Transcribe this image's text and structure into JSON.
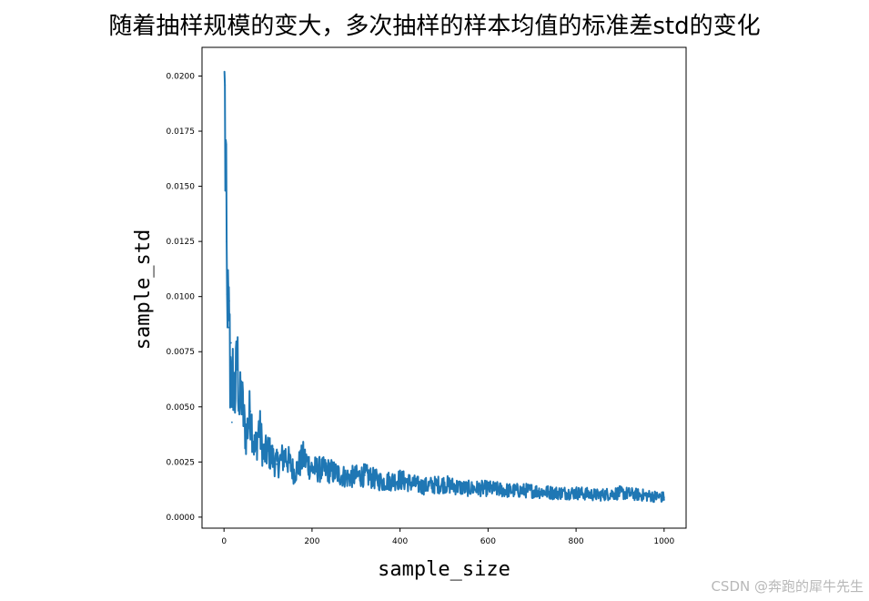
{
  "chart_data": {
    "type": "line",
    "title": "随着抽样规模的变大，多次抽样的样本均值的标准差std的变化",
    "xlabel": "sample_size",
    "ylabel": "sample_std",
    "xlim": [
      -50,
      1050
    ],
    "ylim": [
      -0.0005,
      0.0213
    ],
    "x_ticks": [
      0,
      200,
      400,
      600,
      800,
      1000
    ],
    "x_tick_labels": [
      "0",
      "200",
      "400",
      "600",
      "800",
      "1000"
    ],
    "y_ticks": [
      0.0,
      0.0025,
      0.005,
      0.0075,
      0.01,
      0.0125,
      0.015,
      0.0175,
      0.02
    ],
    "y_tick_labels": [
      "0.0000",
      "0.0025",
      "0.0050",
      "0.0075",
      "0.0100",
      "0.0125",
      "0.0150",
      "0.0175",
      "0.0200"
    ],
    "grid": false,
    "series": [
      {
        "color": "#1f77b4",
        "x": [
          1,
          2,
          3,
          4,
          5,
          6,
          7,
          8,
          9,
          10,
          12,
          14,
          16,
          18,
          20,
          25,
          30,
          35,
          40,
          45,
          50,
          60,
          70,
          80,
          90,
          100,
          120,
          140,
          160,
          180,
          200,
          240,
          280,
          320,
          360,
          400,
          450,
          500,
          550,
          600,
          650,
          700,
          750,
          800,
          850,
          900,
          950,
          1000
        ],
        "y": [
          0.0202,
          0.0196,
          0.0148,
          0.0171,
          0.0169,
          0.0125,
          0.0101,
          0.0086,
          0.0112,
          0.0086,
          0.0098,
          0.006,
          0.0079,
          0.0043,
          0.0064,
          0.0054,
          0.0074,
          0.005,
          0.0055,
          0.0044,
          0.0037,
          0.0048,
          0.003,
          0.0041,
          0.0028,
          0.003,
          0.0024,
          0.0028,
          0.002,
          0.0027,
          0.0022,
          0.0021,
          0.0018,
          0.0019,
          0.0016,
          0.0017,
          0.0014,
          0.0015,
          0.0013,
          0.0013,
          0.0012,
          0.0012,
          0.0011,
          0.0011,
          0.001,
          0.0011,
          0.001,
          0.0009
        ]
      }
    ]
  },
  "watermark": "CSDN @奔跑的犀牛先生"
}
